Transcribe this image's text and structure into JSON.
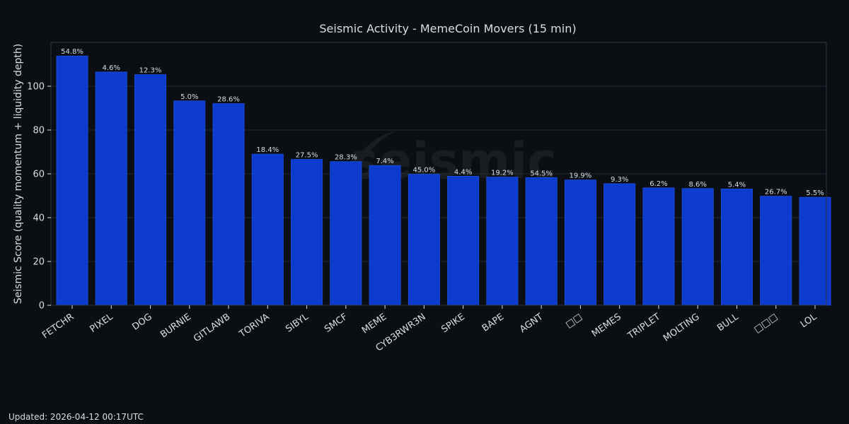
{
  "chart_data": {
    "type": "bar",
    "title": "Seismic Activity - MemeCoin Movers (15 min)",
    "xlabel": "",
    "ylabel": "Seismic Score (quality momentum + liquidity depth)",
    "ylim": [
      0,
      120
    ],
    "yticks": [
      0,
      20,
      40,
      60,
      80,
      100
    ],
    "grid": true,
    "categories": [
      "FETCHR",
      "PIXEL",
      "DOG",
      "BURNIE",
      "GITLAWB",
      "TORIVA",
      "SIBYL",
      "SMCF",
      "MEME",
      "CYB3RWR3N",
      "SPIKE",
      "BAPE",
      "AGNT",
      "□□",
      "MEMES",
      "TRIPLET",
      "MOLTING",
      "BULL",
      "□□□",
      "LOL"
    ],
    "values": [
      113.8,
      106.5,
      105.3,
      93.3,
      92.1,
      69.0,
      66.6,
      65.6,
      63.8,
      59.8,
      58.9,
      58.5,
      58.3,
      57.2,
      55.5,
      53.6,
      53.3,
      53.1,
      49.8,
      49.3
    ],
    "labels": [
      "54.8%",
      "4.6%",
      "12.3%",
      "5.0%",
      "28.6%",
      "18.4%",
      "27.5%",
      "28.3%",
      "7.4%",
      "45.0%",
      "4.4%",
      "19.2%",
      "54.5%",
      "19.9%",
      "9.3%",
      "6.2%",
      "8.6%",
      "5.4%",
      "26.7%",
      "5.5%"
    ],
    "watermark": "seismic",
    "colors": {
      "bar": "#0c3bce",
      "bar_edge": "#1c4fe0",
      "grid": "#1f2a3a",
      "axis": "#2b3442",
      "text": "#d8dde6"
    }
  },
  "footer": {
    "updated": "Updated: 2026-04-12 00:17UTC"
  }
}
